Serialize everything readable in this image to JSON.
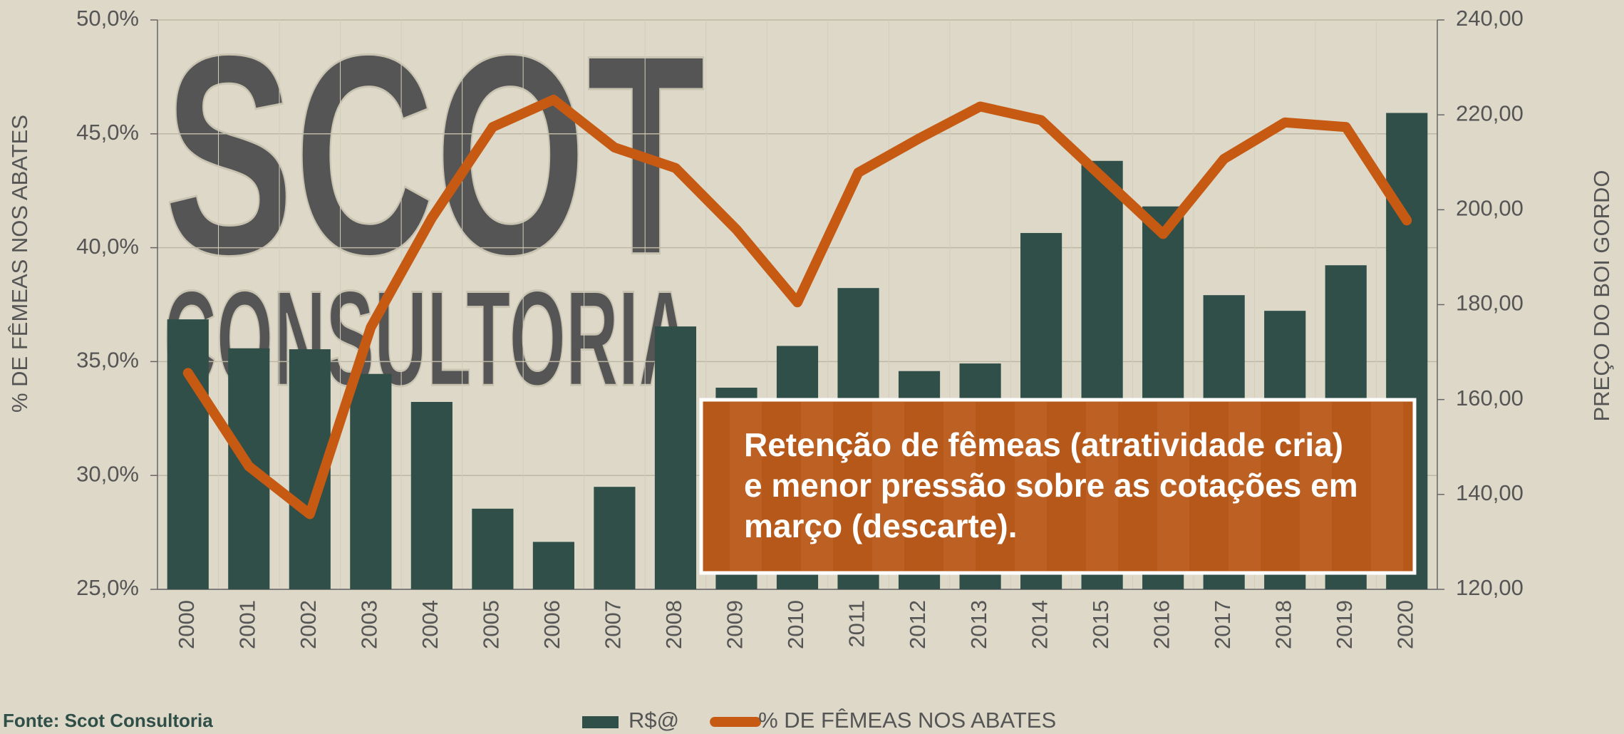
{
  "chart_data": {
    "type": "bar_line",
    "watermark": [
      "SCOT",
      "CONSULTORIA"
    ],
    "y_label": "% DE FÊMEAS NOS ABATES",
    "y2_label": "PREÇO DO BOI GORDO",
    "source": "Fonte: Scot Consultoria",
    "annotation": [
      "Retenção de fêmeas (atratividade cria)",
      "e menor pressão sobre as cotações em",
      "março (descarte)."
    ],
    "categories": [
      "2000",
      "2001",
      "2002",
      "2003",
      "2004",
      "2005",
      "2006",
      "2007",
      "2008",
      "2009",
      "2010",
      "2011",
      "2012",
      "2013",
      "2014",
      "2015",
      "2016",
      "2017",
      "2018",
      "2019",
      "2020"
    ],
    "series": [
      {
        "name": "R$@",
        "type": "bar",
        "axis": "y2",
        "color": "#2f4f48",
        "values": [
          176.9,
          170.8,
          170.6,
          165.4,
          159.5,
          137.0,
          130.0,
          141.6,
          175.4,
          162.5,
          171.3,
          183.5,
          166.0,
          167.6,
          195.1,
          210.3,
          200.7,
          182.0,
          178.7,
          188.3,
          220.4
        ]
      },
      {
        "name": "% DE FÊMEAS NOS ABATES",
        "type": "line",
        "axis": "y",
        "color": "#c65a12",
        "values": [
          34.5,
          30.4,
          28.3,
          36.5,
          41.3,
          45.3,
          46.5,
          44.4,
          43.5,
          40.8,
          37.6,
          43.3,
          44.8,
          46.2,
          45.6,
          43.1,
          40.6,
          43.9,
          45.5,
          45.3,
          41.2
        ]
      }
    ],
    "ylim": [
      25,
      50
    ],
    "yticks": [
      {
        "value": 25,
        "label": "25,0%"
      },
      {
        "value": 30,
        "label": "30,0%"
      },
      {
        "value": 35,
        "label": "35,0%"
      },
      {
        "value": 40,
        "label": "40,0%"
      },
      {
        "value": 45,
        "label": "45,0%"
      },
      {
        "value": 50,
        "label": "50,0%"
      }
    ],
    "y2lim": [
      120,
      240
    ],
    "y2ticks": [
      {
        "value": 120,
        "label": "120,00"
      },
      {
        "value": 140,
        "label": "140,00"
      },
      {
        "value": 160,
        "label": "160,00"
      },
      {
        "value": 180,
        "label": "180,00"
      },
      {
        "value": 200,
        "label": "200,00"
      },
      {
        "value": 220,
        "label": "220,00"
      },
      {
        "value": 240,
        "label": "240,00"
      }
    ],
    "grid": true
  }
}
